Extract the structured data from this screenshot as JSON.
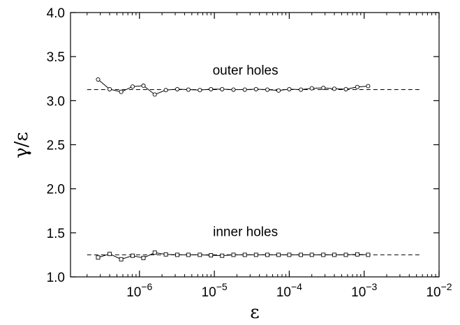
{
  "chart_data": {
    "type": "scatter",
    "title": "",
    "xlabel": "ε",
    "ylabel": "γ/ε",
    "x_scale": "log",
    "xlim": [
      1.2e-07,
      0.01
    ],
    "ylim": [
      1.0,
      4.0
    ],
    "grid": false,
    "x_ticks": [
      {
        "value": 1e-06,
        "base": "10",
        "exp": "−6"
      },
      {
        "value": 1e-05,
        "base": "10",
        "exp": "−5"
      },
      {
        "value": 0.0001,
        "base": "10",
        "exp": "−4"
      },
      {
        "value": 0.001,
        "base": "10",
        "exp": "−3"
      },
      {
        "value": 0.01,
        "base": "10",
        "exp": "−2"
      }
    ],
    "y_ticks": [
      {
        "value": 1.0,
        "label": "1.0"
      },
      {
        "value": 1.5,
        "label": "1.5"
      },
      {
        "value": 2.0,
        "label": "2.0"
      },
      {
        "value": 2.5,
        "label": "2.5"
      },
      {
        "value": 3.0,
        "label": "3.0"
      },
      {
        "value": 3.5,
        "label": "3.5"
      },
      {
        "value": 4.0,
        "label": "4.0"
      }
    ],
    "annotations": [
      {
        "text": "outer holes",
        "x": 2.6e-05,
        "y": 3.35
      },
      {
        "text": "inner holes",
        "x": 2.6e-05,
        "y": 1.52
      }
    ],
    "reference_lines": [
      {
        "y": 3.125,
        "x_from": 2e-07,
        "x_to": 0.0055,
        "style": "dashed"
      },
      {
        "y": 1.25,
        "x_from": 2e-07,
        "x_to": 0.0055,
        "style": "dashed"
      }
    ],
    "series": [
      {
        "marker": "circle",
        "x": [
          2.8e-07,
          4e-07,
          5.7e-07,
          8.1e-07,
          1.13e-06,
          1.6e-06,
          2.25e-06,
          3.2e-06,
          4.5e-06,
          6.4e-06,
          9e-06,
          1.27e-05,
          1.8e-05,
          2.55e-05,
          3.6e-05,
          5.1e-05,
          7.2e-05,
          0.0001,
          0.000143,
          0.0002,
          0.000285,
          0.0004,
          0.00057,
          0.00081,
          0.00113
        ],
        "y": [
          3.24,
          3.13,
          3.1,
          3.16,
          3.17,
          3.07,
          3.12,
          3.13,
          3.125,
          3.12,
          3.13,
          3.13,
          3.125,
          3.125,
          3.13,
          3.125,
          3.115,
          3.13,
          3.125,
          3.14,
          3.145,
          3.135,
          3.13,
          3.155,
          3.165
        ]
      },
      {
        "marker": "square",
        "x": [
          2.8e-07,
          4e-07,
          5.7e-07,
          8.1e-07,
          1.13e-06,
          1.6e-06,
          2.25e-06,
          3.2e-06,
          4.5e-06,
          6.4e-06,
          9e-06,
          1.27e-05,
          1.8e-05,
          2.55e-05,
          3.6e-05,
          5.1e-05,
          7.2e-05,
          0.0001,
          0.000143,
          0.0002,
          0.000285,
          0.0004,
          0.00057,
          0.00081,
          0.00113
        ],
        "y": [
          1.22,
          1.26,
          1.2,
          1.24,
          1.215,
          1.275,
          1.255,
          1.25,
          1.25,
          1.25,
          1.245,
          1.24,
          1.25,
          1.25,
          1.25,
          1.25,
          1.25,
          1.25,
          1.25,
          1.25,
          1.25,
          1.25,
          1.25,
          1.255,
          1.25
        ]
      }
    ]
  }
}
